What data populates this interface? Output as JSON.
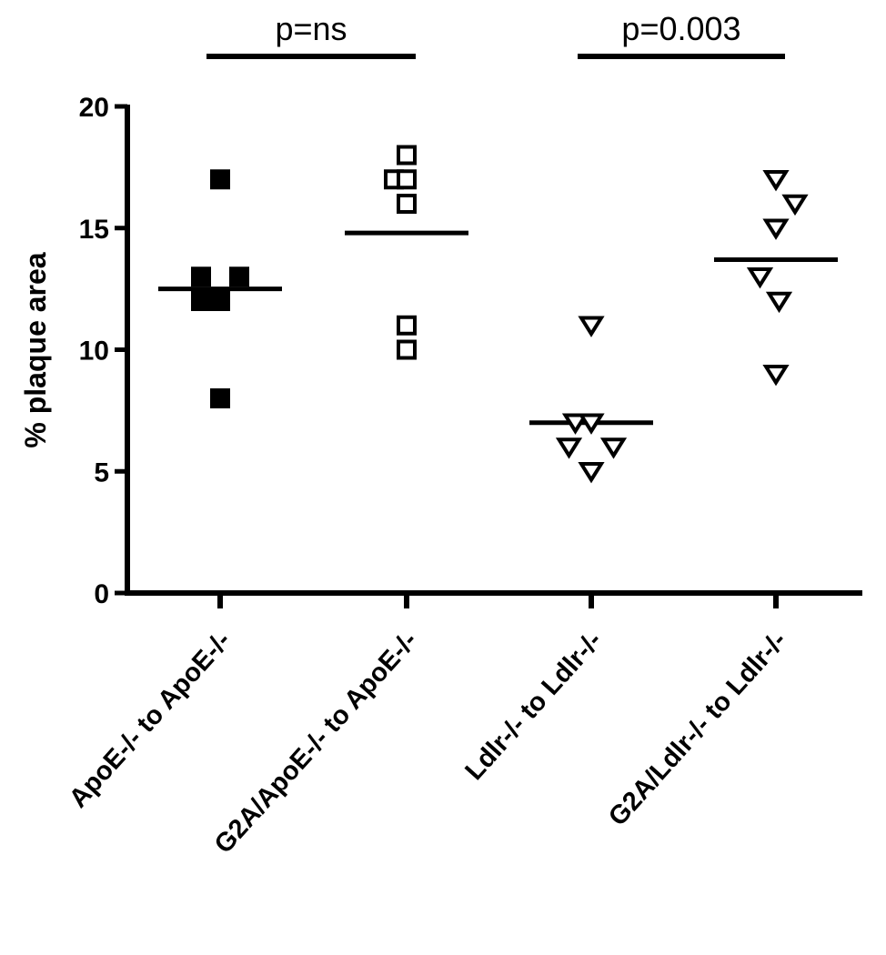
{
  "chart_data": {
    "type": "scatter",
    "title": "",
    "xlabel": "",
    "ylabel": "% plaque area",
    "ylim": [
      0,
      20
    ],
    "yticks": [
      0,
      5,
      10,
      15,
      20
    ],
    "ytick_labels": [
      "0",
      "5",
      "10",
      "15",
      "20"
    ],
    "grid": false,
    "legend": "none",
    "categories": [
      "ApoE-/- to ApoE-/-",
      "G2A/ApoE-/- to ApoE-/-",
      "Ldlr-/- to Ldlr-/-",
      "G2A/Ldlr-/- to Ldlr-/-"
    ],
    "series": [
      {
        "category": "ApoE-/- to ApoE-/-",
        "marker": "square-filled",
        "points": [
          [
            -0.3,
            13
          ],
          [
            0.3,
            13
          ],
          [
            0.0,
            17
          ],
          [
            -0.3,
            12
          ],
          [
            0.0,
            12
          ],
          [
            0.0,
            8
          ]
        ],
        "mean": 12.5
      },
      {
        "category": "G2A/ApoE-/- to ApoE-/-",
        "marker": "square-open",
        "points": [
          [
            0.0,
            18
          ],
          [
            -0.2,
            17
          ],
          [
            0.0,
            17
          ],
          [
            0.0,
            16
          ],
          [
            0.0,
            11
          ],
          [
            0.0,
            10
          ]
        ],
        "mean": 14.8
      },
      {
        "category": "Ldlr-/- to Ldlr-/-",
        "marker": "triangle-down-open",
        "points": [
          [
            0.0,
            11
          ],
          [
            -0.25,
            7
          ],
          [
            0.0,
            7
          ],
          [
            -0.35,
            6
          ],
          [
            0.35,
            6
          ],
          [
            0.0,
            5
          ]
        ],
        "mean": 7.0
      },
      {
        "category": "G2A/Ldlr-/- to Ldlr-/-",
        "marker": "triangle-down-open",
        "points": [
          [
            0.0,
            17
          ],
          [
            0.3,
            16
          ],
          [
            0.0,
            15
          ],
          [
            -0.25,
            13
          ],
          [
            0.05,
            12
          ],
          [
            0.0,
            9
          ]
        ],
        "mean": 13.7
      }
    ],
    "annotations": [
      {
        "text": "p=ns",
        "from": 0,
        "to": 1
      },
      {
        "text": "p=0.003",
        "from": 2,
        "to": 3
      }
    ],
    "colors": {
      "ink": "#000000",
      "background": "#ffffff"
    }
  }
}
